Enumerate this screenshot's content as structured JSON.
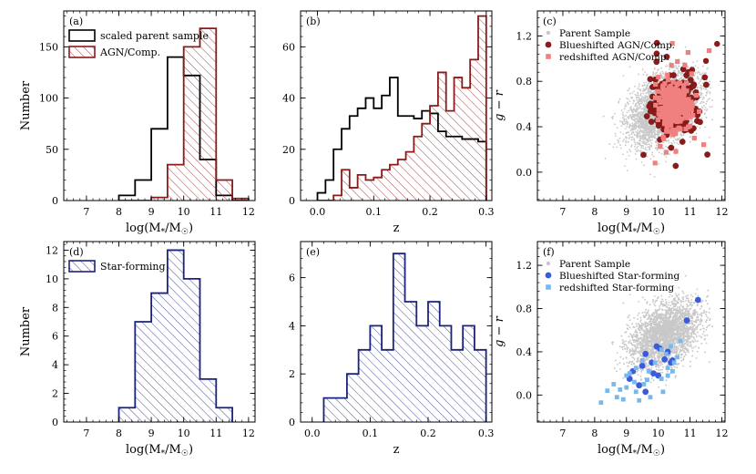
{
  "colors": {
    "agn": "#8b1a1a",
    "agn_light": "#f08080",
    "sf": "#1a237e",
    "sf_blue": "#3b5bdb",
    "sf_light": "#74b9f0",
    "parent": "#c8c8c8"
  },
  "chart_data": [
    {
      "panel": "(a)",
      "type": "histogram",
      "xlabel": "log(M*/M☉)",
      "ylabel": "Number",
      "xlim": [
        6.3,
        12.2
      ],
      "ylim": [
        0,
        185
      ],
      "xticks": [
        7,
        8,
        9,
        10,
        11,
        12
      ],
      "yticks": [
        0,
        50,
        100,
        150
      ],
      "bin_edges": [
        8.0,
        8.5,
        9.0,
        9.5,
        10.0,
        10.5,
        11.0,
        11.5,
        12.0
      ],
      "series": [
        {
          "name": "scaled parent sample",
          "style": "step",
          "values": [
            5,
            20,
            70,
            140,
            122,
            40,
            5,
            0
          ]
        },
        {
          "name": "AGN/Comp.",
          "style": "hatched",
          "values": [
            0,
            0,
            3,
            35,
            150,
            168,
            20,
            2
          ]
        }
      ],
      "legend": "top-left"
    },
    {
      "panel": "(b)",
      "type": "histogram",
      "xlabel": "z",
      "ylabel": "",
      "xlim": [
        -0.03,
        0.31
      ],
      "ylim": [
        0,
        74
      ],
      "xticks": [
        0.0,
        0.1,
        0.2,
        0.3
      ],
      "xtick_labels": [
        "0.0",
        "0.1",
        "0.2",
        "0.3"
      ],
      "yticks": [
        0,
        20,
        40,
        60
      ],
      "bin_edges": [
        0.0,
        0.0143,
        0.0286,
        0.0429,
        0.0571,
        0.0714,
        0.0857,
        0.1,
        0.1143,
        0.1286,
        0.1429,
        0.1571,
        0.1714,
        0.1857,
        0.2,
        0.2143,
        0.2286,
        0.2429,
        0.2571,
        0.2714,
        0.2857,
        0.3
      ],
      "series": [
        {
          "name": "scaled parent sample",
          "style": "step",
          "values": [
            3,
            8,
            20,
            28,
            33,
            36,
            40,
            36,
            41,
            48,
            33,
            33,
            32,
            35,
            34,
            27,
            25,
            25,
            24,
            24,
            23
          ]
        },
        {
          "name": "AGN/Comp.",
          "style": "hatched",
          "values": [
            0,
            0,
            2,
            12,
            5,
            10,
            8,
            9,
            12,
            14,
            16,
            19,
            25,
            30,
            37,
            50,
            35,
            48,
            44,
            55,
            72
          ]
        }
      ]
    },
    {
      "panel": "(c)",
      "type": "scatter",
      "xlabel": "log(M*/M☉)",
      "ylabel": "g − r",
      "xlim": [
        6.2,
        12.1
      ],
      "ylim": [
        -0.25,
        1.42
      ],
      "xticks": [
        7,
        8,
        9,
        10,
        11,
        12
      ],
      "yticks": [
        0.0,
        0.4,
        0.8,
        1.2
      ],
      "ytick_labels": [
        "0.0",
        "0.4",
        "0.8",
        "1.2"
      ],
      "series": [
        {
          "name": "Parent Sample",
          "marker": "small-dot",
          "distribution": {
            "center": [
              10.2,
              0.56
            ],
            "spread": [
              0.55,
              0.14
            ],
            "x_range": [
              7.6,
              11.7
            ]
          }
        },
        {
          "name": "Blueshifted AGN/Comp.",
          "marker": "circle",
          "cluster": {
            "center": [
              10.5,
              0.58
            ],
            "spread": [
              0.28,
              0.11
            ]
          }
        },
        {
          "name": "redshifted AGN/Comp.",
          "marker": "square",
          "cluster": {
            "center": [
              10.5,
              0.58
            ],
            "spread": [
              0.28,
              0.11
            ]
          }
        }
      ],
      "legend": "top-left"
    },
    {
      "panel": "(d)",
      "type": "histogram",
      "xlabel": "log(M*/M☉)",
      "ylabel": "Number",
      "xlim": [
        6.3,
        12.2
      ],
      "ylim": [
        0,
        12.6
      ],
      "xticks": [
        7,
        8,
        9,
        10,
        11,
        12
      ],
      "yticks": [
        0,
        2,
        4,
        6,
        8,
        10,
        12
      ],
      "bin_edges": [
        8.0,
        8.5,
        9.0,
        9.5,
        10.0,
        10.5,
        11.0,
        11.5
      ],
      "series": [
        {
          "name": "Star-forming",
          "style": "hatched",
          "values": [
            1,
            7,
            9,
            12,
            10,
            3,
            1
          ]
        }
      ],
      "legend": "top-left"
    },
    {
      "panel": "(e)",
      "type": "histogram",
      "xlabel": "z",
      "ylabel": "",
      "xlim": [
        -0.02,
        0.31
      ],
      "ylim": [
        0,
        7.5
      ],
      "xticks": [
        0.0,
        0.1,
        0.2,
        0.3
      ],
      "xtick_labels": [
        "0.0",
        "0.1",
        "0.2",
        "0.3"
      ],
      "yticks": [
        0,
        2,
        4,
        6
      ],
      "bin_edges": [
        0.02,
        0.04,
        0.06,
        0.08,
        0.1,
        0.12,
        0.14,
        0.16,
        0.18,
        0.2,
        0.22,
        0.24,
        0.26,
        0.28,
        0.3
      ],
      "series": [
        {
          "name": "Star-forming",
          "style": "hatched",
          "values": [
            1,
            1,
            2,
            3,
            4,
            3,
            7,
            5,
            4,
            5,
            4,
            3,
            4,
            3
          ]
        }
      ]
    },
    {
      "panel": "(f)",
      "type": "scatter",
      "xlabel": "log(M*/M☉)",
      "ylabel": "g − r",
      "xlim": [
        6.2,
        12.1
      ],
      "ylim": [
        -0.25,
        1.42
      ],
      "xticks": [
        7,
        8,
        9,
        10,
        11,
        12
      ],
      "yticks": [
        0.0,
        0.4,
        0.8,
        1.2
      ],
      "ytick_labels": [
        "0.0",
        "0.4",
        "0.8",
        "1.2"
      ],
      "series": [
        {
          "name": "Parent Sample",
          "marker": "small-dot",
          "distribution": {
            "center": [
              10.2,
              0.56
            ],
            "spread": [
              0.55,
              0.14
            ],
            "x_range": [
              7.6,
              11.7
            ]
          }
        },
        {
          "name": "Blueshifted Star-forming",
          "marker": "circle",
          "points": [
            [
              11.25,
              0.88
            ],
            [
              10.9,
              0.69
            ],
            [
              9.95,
              0.45
            ],
            [
              10.05,
              0.43
            ],
            [
              10.3,
              0.4
            ],
            [
              9.6,
              0.38
            ],
            [
              10.2,
              0.33
            ],
            [
              10.45,
              0.32
            ],
            [
              9.8,
              0.3
            ],
            [
              10.4,
              0.3
            ],
            [
              9.5,
              0.27
            ],
            [
              9.2,
              0.22
            ],
            [
              9.85,
              0.2
            ],
            [
              10.0,
              0.18
            ],
            [
              9.1,
              0.15
            ],
            [
              9.4,
              0.09
            ],
            [
              9.6,
              0.03
            ]
          ]
        },
        {
          "name": "redshifted Star-forming",
          "marker": "square",
          "points": [
            [
              10.7,
              0.5
            ],
            [
              10.4,
              0.45
            ],
            [
              10.1,
              0.42
            ],
            [
              10.25,
              0.38
            ],
            [
              9.5,
              0.32
            ],
            [
              9.9,
              0.3
            ],
            [
              10.6,
              0.35
            ],
            [
              9.3,
              0.25
            ],
            [
              9.7,
              0.22
            ],
            [
              10.45,
              0.22
            ],
            [
              9.0,
              0.18
            ],
            [
              10.3,
              0.18
            ],
            [
              9.25,
              0.12
            ],
            [
              8.6,
              0.1
            ],
            [
              9.0,
              0.07
            ],
            [
              9.55,
              0.1
            ],
            [
              8.4,
              0.04
            ],
            [
              9.3,
              0.03
            ],
            [
              10.1,
              0.15
            ],
            [
              9.75,
              -0.02
            ],
            [
              8.7,
              -0.02
            ],
            [
              8.8,
              0.05
            ],
            [
              10.15,
              0.03
            ],
            [
              8.9,
              -0.04
            ],
            [
              8.2,
              -0.07
            ],
            [
              9.4,
              -0.05
            ],
            [
              9.1,
              0.2
            ],
            [
              10.3,
              0.25
            ],
            [
              9.65,
              0.14
            ],
            [
              10.5,
              0.3
            ]
          ]
        }
      ],
      "legend": "top-left"
    }
  ]
}
